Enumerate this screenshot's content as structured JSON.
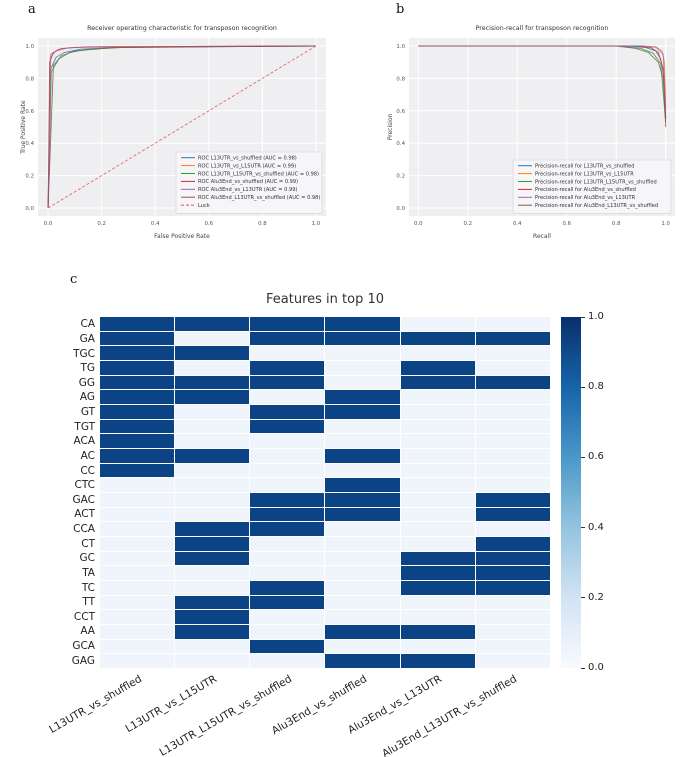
{
  "figure": {
    "panel_a_label": "a",
    "panel_b_label": "b",
    "panel_c_label": "c"
  },
  "colors": {
    "plot_background": "#efeff2",
    "grid_line": "#ffffff",
    "tick_text": "#555555",
    "title_text": "#333333",
    "luck_color": "#e05353"
  },
  "chart_data": [
    {
      "id": "roc",
      "type": "line",
      "title": "Receiver operating characteristic for transposon recognition",
      "xlabel": "False Positive Rate",
      "ylabel": "True Positive Rate",
      "xlim": [
        0,
        1
      ],
      "ylim": [
        0,
        1
      ],
      "grid": true,
      "legend_position": "lower right",
      "xticks": [
        "0.0",
        "0.2",
        "0.4",
        "0.6",
        "0.8",
        "1.0"
      ],
      "yticks": [
        "0.0",
        "0.2",
        "0.4",
        "0.6",
        "0.8",
        "1.0"
      ],
      "series": [
        {
          "name": "ROC L13UTR_vs_shuffled (AUC = 0.98)",
          "auc": "0.98",
          "color": "#1f77b4",
          "dashed": false,
          "points": [
            [
              0,
              0
            ],
            [
              0.01,
              0.86
            ],
            [
              0.03,
              0.93
            ],
            [
              0.06,
              0.96
            ],
            [
              0.12,
              0.98
            ],
            [
              0.25,
              0.99
            ],
            [
              0.5,
              0.997
            ],
            [
              1,
              1
            ]
          ]
        },
        {
          "name": "ROC L13UTR_vs_L15UTR (AUC = 0.99)",
          "auc": "0.99",
          "color": "#ff7f0e",
          "dashed": false,
          "points": [
            [
              0,
              0
            ],
            [
              0.008,
              0.93
            ],
            [
              0.03,
              0.97
            ],
            [
              0.08,
              0.99
            ],
            [
              0.2,
              0.995
            ],
            [
              1,
              1
            ]
          ]
        },
        {
          "name": "ROC L13UTR_L15UTR_vs_shuffled (AUC = 0.98)",
          "auc": "0.98",
          "color": "#2ca02c",
          "dashed": false,
          "points": [
            [
              0,
              0
            ],
            [
              0.012,
              0.84
            ],
            [
              0.04,
              0.92
            ],
            [
              0.08,
              0.96
            ],
            [
              0.15,
              0.98
            ],
            [
              0.3,
              0.992
            ],
            [
              1,
              1
            ]
          ]
        },
        {
          "name": "ROC Alu3End_vs_shuffled (AUC = 0.99)",
          "auc": "0.99",
          "color": "#d62728",
          "dashed": false,
          "points": [
            [
              0,
              0
            ],
            [
              0.006,
              0.9
            ],
            [
              0.02,
              0.96
            ],
            [
              0.05,
              0.985
            ],
            [
              0.15,
              0.995
            ],
            [
              1,
              1
            ]
          ]
        },
        {
          "name": "ROC Alu3End_vs_L13UTR (AUC = 0.99)",
          "auc": "0.99",
          "color": "#9467bd",
          "dashed": false,
          "points": [
            [
              0,
              0
            ],
            [
              0.01,
              0.95
            ],
            [
              0.04,
              0.98
            ],
            [
              0.1,
              0.992
            ],
            [
              1,
              1
            ]
          ]
        },
        {
          "name": "ROC Alu3End_L13UTR_vs_shuffled (AUC = 0.98)",
          "auc": "0.98",
          "color": "#8c564b",
          "dashed": false,
          "points": [
            [
              0,
              0
            ],
            [
              0.02,
              0.88
            ],
            [
              0.05,
              0.94
            ],
            [
              0.1,
              0.97
            ],
            [
              0.25,
              0.99
            ],
            [
              1,
              1
            ]
          ]
        },
        {
          "name": "Luck",
          "color": "#e05353",
          "dashed": true,
          "points": [
            [
              0,
              0
            ],
            [
              1,
              1
            ]
          ]
        }
      ]
    },
    {
      "id": "pr",
      "type": "line",
      "title": "Precision-recall for transposon recognition",
      "xlabel": "Recall",
      "ylabel": "Precision",
      "xlim": [
        0,
        1
      ],
      "ylim": [
        0,
        1
      ],
      "grid": true,
      "legend_position": "lower right",
      "xticks": [
        "0.0",
        "0.2",
        "0.4",
        "0.6",
        "0.8",
        "1.0"
      ],
      "yticks": [
        "0.0",
        "0.2",
        "0.4",
        "0.6",
        "0.8",
        "1.0"
      ],
      "series": [
        {
          "name": "Precision-recall for L13UTR_vs_shuffled",
          "color": "#1f77b4",
          "dashed": false,
          "points": [
            [
              0,
              1
            ],
            [
              0.85,
              1
            ],
            [
              0.92,
              0.99
            ],
            [
              0.96,
              0.97
            ],
            [
              0.98,
              0.92
            ],
            [
              0.995,
              0.78
            ],
            [
              1,
              0.55
            ]
          ]
        },
        {
          "name": "Precision-recall for L13UTR_vs_L15UTR",
          "color": "#ff7f0e",
          "dashed": false,
          "points": [
            [
              0,
              1
            ],
            [
              0.9,
              1
            ],
            [
              0.96,
              0.995
            ],
            [
              0.985,
              0.97
            ],
            [
              0.995,
              0.9
            ],
            [
              1,
              0.62
            ]
          ]
        },
        {
          "name": "Precision-recall for L13UTR_L15UTR_vs_shuffled",
          "color": "#2ca02c",
          "dashed": false,
          "points": [
            [
              0,
              1
            ],
            [
              0.82,
              1
            ],
            [
              0.9,
              0.985
            ],
            [
              0.95,
              0.955
            ],
            [
              0.98,
              0.89
            ],
            [
              1,
              0.53
            ]
          ]
        },
        {
          "name": "Precision-recall for Alu3End_vs_shuffled",
          "color": "#d62728",
          "dashed": false,
          "points": [
            [
              0,
              1
            ],
            [
              0.88,
              1
            ],
            [
              0.94,
              0.99
            ],
            [
              0.97,
              0.96
            ],
            [
              0.99,
              0.86
            ],
            [
              1,
              0.56
            ]
          ]
        },
        {
          "name": "Precision-recall for Alu3End_vs_L13UTR",
          "color": "#9467bd",
          "dashed": false,
          "points": [
            [
              0,
              1
            ],
            [
              0.9,
              1
            ],
            [
              0.96,
              0.992
            ],
            [
              0.99,
              0.95
            ],
            [
              1,
              0.62
            ]
          ]
        },
        {
          "name": "Precision-recall for Alu3End_L13UTR_vs_shuffled",
          "color": "#8c564b",
          "dashed": false,
          "points": [
            [
              0,
              1
            ],
            [
              0.8,
              1
            ],
            [
              0.88,
              0.985
            ],
            [
              0.93,
              0.96
            ],
            [
              0.97,
              0.9
            ],
            [
              0.99,
              0.8
            ],
            [
              1,
              0.5
            ]
          ]
        }
      ]
    },
    {
      "id": "features-heatmap",
      "type": "heatmap",
      "title": "Features in top 10",
      "rows": [
        "CA",
        "GA",
        "TGC",
        "TG",
        "GG",
        "AG",
        "GT",
        "TGT",
        "ACA",
        "AC",
        "CC",
        "CTC",
        "GAC",
        "ACT",
        "CCA",
        "CT",
        "GC",
        "TA",
        "TC",
        "TT",
        "CCT",
        "AA",
        "GCA",
        "GAG"
      ],
      "columns": [
        "L13UTR_vs_shuffled",
        "L13UTR_vs_L15UTR",
        "L13UTR_L15UTR_vs_shuffled",
        "Alu3End_vs_shuffled",
        "Alu3End_vs_L13UTR",
        "Alu3End_L13UTR_vs_shuffled"
      ],
      "values": [
        [
          1,
          1,
          1,
          1,
          0,
          0
        ],
        [
          1,
          0,
          1,
          1,
          1,
          1
        ],
        [
          1,
          1,
          0,
          0,
          0,
          0
        ],
        [
          1,
          0,
          1,
          0,
          1,
          0
        ],
        [
          1,
          1,
          1,
          0,
          1,
          1
        ],
        [
          1,
          1,
          0,
          1,
          0,
          0
        ],
        [
          1,
          0,
          1,
          1,
          0,
          0
        ],
        [
          1,
          0,
          1,
          0,
          0,
          0
        ],
        [
          1,
          0,
          0,
          0,
          0,
          0
        ],
        [
          1,
          1,
          0,
          1,
          0,
          0
        ],
        [
          1,
          0,
          0,
          0,
          0,
          0
        ],
        [
          0,
          0,
          0,
          1,
          0,
          0
        ],
        [
          0,
          0,
          1,
          1,
          0,
          1
        ],
        [
          0,
          0,
          1,
          1,
          0,
          1
        ],
        [
          0,
          1,
          1,
          0,
          0,
          0
        ],
        [
          0,
          1,
          0,
          0,
          0,
          1
        ],
        [
          0,
          1,
          0,
          0,
          1,
          1
        ],
        [
          0,
          0,
          0,
          0,
          1,
          1
        ],
        [
          0,
          0,
          1,
          0,
          1,
          1
        ],
        [
          0,
          1,
          1,
          0,
          0,
          0
        ],
        [
          0,
          1,
          0,
          0,
          0,
          0
        ],
        [
          0,
          1,
          0,
          1,
          1,
          0
        ],
        [
          0,
          0,
          1,
          0,
          0,
          0
        ],
        [
          0,
          0,
          0,
          1,
          1,
          0
        ]
      ],
      "value_range": [
        0,
        1
      ],
      "cell_on_color": "#0b4384",
      "cell_off_color": "#eff5fb",
      "colorbar": {
        "ticks": [
          "1.0",
          "0.8",
          "0.6",
          "0.4",
          "0.2",
          "0.0"
        ],
        "gradient_stops": [
          "#08306b",
          "#1764ab",
          "#4a98c9",
          "#94c4df",
          "#d2e3f3",
          "#f7fbff"
        ]
      }
    }
  ]
}
